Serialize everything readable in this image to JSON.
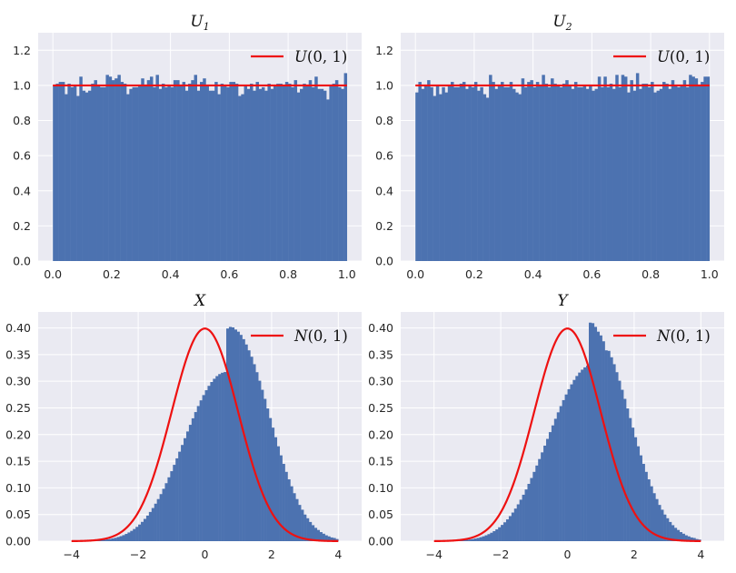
{
  "colors": {
    "bar": "#4c72b0",
    "line": "#ee1111",
    "panel_bg": "#eaeaf2",
    "grid": "#ffffff"
  },
  "chart_data": [
    {
      "type": "bar",
      "title": "U",
      "title_sub": "1",
      "legend": {
        "var": "U",
        "args": "(0, 1)",
        "location": "upper-right"
      },
      "xlim": [
        -0.05,
        1.05
      ],
      "ylim": [
        0,
        1.3
      ],
      "xticks": [
        0.0,
        0.2,
        0.4,
        0.6,
        0.8,
        1.0
      ],
      "xtick_labels": [
        "0.0",
        "0.2",
        "0.4",
        "0.6",
        "0.8",
        "1.0"
      ],
      "yticks": [
        0.0,
        0.2,
        0.4,
        0.6,
        0.8,
        1.0,
        1.2
      ],
      "ytick_labels": [
        "0.0",
        "0.2",
        "0.4",
        "0.6",
        "0.8",
        "1.0",
        "1.2"
      ],
      "bins": {
        "start": 0,
        "width": 0.01
      },
      "values": [
        1.0,
        1.01,
        1.02,
        1.02,
        0.95,
        1.01,
        0.99,
        1.0,
        0.94,
        1.05,
        0.97,
        0.96,
        0.97,
        1.01,
        1.03,
        1.0,
        0.99,
        0.99,
        1.06,
        1.05,
        1.03,
        1.04,
        1.06,
        1.02,
        1.01,
        0.95,
        0.98,
        0.99,
        0.99,
        1.0,
        1.04,
        1.0,
        1.03,
        1.05,
        0.99,
        1.06,
        0.98,
        1.01,
        0.99,
        1.0,
        0.99,
        1.03,
        1.03,
        1.0,
        1.02,
        0.97,
        1.01,
        1.03,
        1.06,
        0.97,
        1.02,
        1.04,
        1.0,
        0.97,
        0.97,
        1.02,
        0.95,
        1.01,
        1.0,
        0.99,
        1.02,
        1.02,
        1.01,
        0.94,
        0.95,
        1.0,
        0.98,
        1.01,
        0.97,
        1.02,
        0.98,
        0.99,
        0.97,
        1.01,
        0.98,
        1.0,
        1.01,
        1.01,
        1.0,
        1.02,
        1.01,
        0.99,
        1.03,
        0.96,
        0.98,
        1.01,
        1.0,
        1.03,
        0.99,
        1.05,
        0.98,
        0.98,
        0.97,
        0.92,
        1.0,
        1.01,
        1.03,
        0.99,
        0.98,
        1.07
      ],
      "curve": {
        "name": "U(0, 1)",
        "kind": "uniform",
        "a": 0,
        "b": 1
      }
    },
    {
      "type": "bar",
      "title": "U",
      "title_sub": "2",
      "legend": {
        "var": "U",
        "args": "(0, 1)",
        "location": "upper-right"
      },
      "xlim": [
        -0.05,
        1.05
      ],
      "ylim": [
        0,
        1.3
      ],
      "xticks": [
        0.0,
        0.2,
        0.4,
        0.6,
        0.8,
        1.0
      ],
      "xtick_labels": [
        "0.0",
        "0.2",
        "0.4",
        "0.6",
        "0.8",
        "1.0"
      ],
      "yticks": [
        0.0,
        0.2,
        0.4,
        0.6,
        0.8,
        1.0,
        1.2
      ],
      "ytick_labels": [
        "0.0",
        "0.2",
        "0.4",
        "0.6",
        "0.8",
        "1.0",
        "1.2"
      ],
      "bins": {
        "start": 0,
        "width": 0.01
      },
      "values": [
        0.96,
        1.02,
        0.98,
        1.0,
        1.03,
        0.99,
        0.94,
        1.0,
        0.95,
        0.99,
        0.96,
        1.0,
        1.02,
        0.99,
        0.99,
        1.01,
        1.02,
        0.98,
        1.0,
        0.99,
        1.02,
        0.97,
        0.99,
        0.95,
        0.93,
        1.06,
        1.02,
        0.98,
        1.0,
        1.02,
        0.99,
        0.99,
        1.02,
        0.98,
        0.96,
        0.95,
        1.04,
        0.99,
        1.02,
        1.03,
        0.99,
        1.02,
        1.0,
        1.06,
        1.01,
        0.99,
        1.04,
        1.01,
        1.0,
        0.99,
        1.01,
        1.03,
        1.0,
        0.98,
        1.02,
        0.99,
        0.99,
        1.0,
        0.98,
        1.0,
        0.97,
        0.98,
        1.05,
        0.99,
        1.05,
        0.99,
        1.01,
        0.98,
        1.06,
        0.99,
        1.06,
        1.05,
        0.96,
        1.03,
        0.97,
        1.07,
        0.98,
        1.01,
        1.01,
        0.99,
        1.02,
        0.96,
        0.97,
        0.98,
        1.02,
        1.01,
        0.98,
        1.03,
        1.0,
        0.99,
        1.0,
        1.03,
        0.99,
        1.06,
        1.05,
        1.04,
        1.0,
        1.02,
        1.05,
        1.05
      ],
      "curve": {
        "name": "U(0, 1)",
        "kind": "uniform",
        "a": 0,
        "b": 1
      }
    },
    {
      "type": "bar",
      "title": "X",
      "title_sub": "",
      "legend": {
        "var": "N",
        "args": "(0, 1)",
        "location": "upper-right"
      },
      "xlim": [
        -5.0,
        4.7
      ],
      "ylim": [
        0,
        0.43
      ],
      "xticks": [
        -4,
        -2,
        0,
        2,
        4
      ],
      "xtick_labels": [
        "−4",
        "−2",
        "0",
        "2",
        "4"
      ],
      "yticks": [
        0.0,
        0.05,
        0.1,
        0.15,
        0.2,
        0.25,
        0.3,
        0.35,
        0.4
      ],
      "ytick_labels": [
        "0.00",
        "0.05",
        "0.10",
        "0.15",
        "0.20",
        "0.25",
        "0.30",
        "0.35",
        "0.40"
      ],
      "bins": {
        "start": -4.0,
        "width": 0.08
      },
      "values": [
        0.0001,
        0.0002,
        0.0003,
        0.0003,
        0.0004,
        0.0005,
        0.0007,
        0.0008,
        0.0011,
        0.0014,
        0.0017,
        0.0022,
        0.0027,
        0.0034,
        0.0042,
        0.0052,
        0.0063,
        0.0078,
        0.0094,
        0.0113,
        0.0136,
        0.0163,
        0.0193,
        0.0228,
        0.0268,
        0.0312,
        0.0362,
        0.0418,
        0.048,
        0.0548,
        0.0622,
        0.0703,
        0.079,
        0.0883,
        0.0983,
        0.1088,
        0.1198,
        0.1313,
        0.1432,
        0.1554,
        0.1679,
        0.1805,
        0.1932,
        0.2058,
        0.2183,
        0.2305,
        0.2422,
        0.2535,
        0.2642,
        0.2741,
        0.2832,
        0.2914,
        0.2986,
        0.3047,
        0.3097,
        0.3135,
        0.316,
        0.3173,
        0.399,
        0.402,
        0.401,
        0.397,
        0.393,
        0.387,
        0.379,
        0.369,
        0.358,
        0.346,
        0.332,
        0.317,
        0.301,
        0.284,
        0.267,
        0.249,
        0.231,
        0.213,
        0.195,
        0.178,
        0.161,
        0.145,
        0.13,
        0.116,
        0.103,
        0.09,
        0.079,
        0.068,
        0.059,
        0.05,
        0.043,
        0.036,
        0.03,
        0.025,
        0.021,
        0.017,
        0.014,
        0.011,
        0.009,
        0.007,
        0.006,
        0.004
      ],
      "curve": {
        "name": "N(0, 1)",
        "kind": "normal",
        "mu": 0,
        "sigma": 1,
        "x_range": [
          -4,
          4
        ]
      }
    },
    {
      "type": "bar",
      "title": "Y",
      "title_sub": "",
      "legend": {
        "var": "N",
        "args": "(0, 1)",
        "location": "upper-right"
      },
      "xlim": [
        -5.0,
        4.7
      ],
      "ylim": [
        0,
        0.43
      ],
      "xticks": [
        -4,
        -2,
        0,
        2,
        4
      ],
      "xtick_labels": [
        "−4",
        "−2",
        "0",
        "2",
        "4"
      ],
      "yticks": [
        0.0,
        0.05,
        0.1,
        0.15,
        0.2,
        0.25,
        0.3,
        0.35,
        0.4
      ],
      "ytick_labels": [
        "0.00",
        "0.05",
        "0.10",
        "0.15",
        "0.20",
        "0.25",
        "0.30",
        "0.35",
        "0.40"
      ],
      "bins": {
        "start": -4.0,
        "width": 0.08
      },
      "values": [
        0.0001,
        0.0001,
        0.0002,
        0.0003,
        0.0004,
        0.0005,
        0.0006,
        0.0008,
        0.001,
        0.0013,
        0.0016,
        0.0021,
        0.0026,
        0.0032,
        0.004,
        0.005,
        0.0061,
        0.0075,
        0.0091,
        0.011,
        0.0132,
        0.0158,
        0.0188,
        0.0222,
        0.0261,
        0.0305,
        0.0354,
        0.0409,
        0.047,
        0.0537,
        0.0611,
        0.0691,
        0.0778,
        0.0871,
        0.097,
        0.1075,
        0.1185,
        0.13,
        0.1419,
        0.1541,
        0.1666,
        0.1792,
        0.1919,
        0.2046,
        0.2172,
        0.2296,
        0.2417,
        0.2534,
        0.2646,
        0.2752,
        0.2851,
        0.2942,
        0.3025,
        0.3099,
        0.3163,
        0.3217,
        0.3261,
        0.3294,
        0.41,
        0.409,
        0.402,
        0.393,
        0.386,
        0.375,
        0.358,
        0.357,
        0.345,
        0.332,
        0.317,
        0.301,
        0.284,
        0.267,
        0.249,
        0.231,
        0.213,
        0.195,
        0.178,
        0.161,
        0.145,
        0.13,
        0.116,
        0.103,
        0.09,
        0.079,
        0.068,
        0.059,
        0.05,
        0.043,
        0.036,
        0.03,
        0.025,
        0.021,
        0.017,
        0.014,
        0.011,
        0.009,
        0.007,
        0.006,
        0.004,
        0.003
      ],
      "curve": {
        "name": "N(0, 1)",
        "kind": "normal",
        "mu": 0,
        "sigma": 1,
        "x_range": [
          -4,
          4
        ]
      }
    }
  ]
}
